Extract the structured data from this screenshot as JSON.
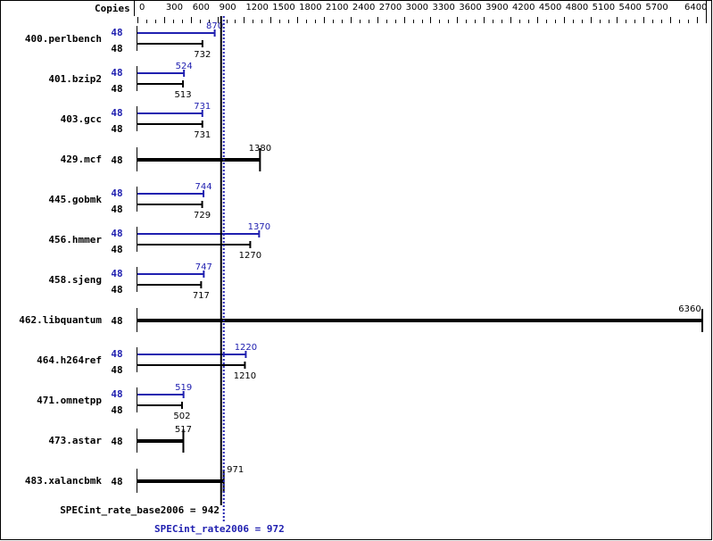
{
  "chart_data": {
    "type": "bar",
    "orientation": "horizontal",
    "copies_label": "Copies",
    "xlim": [
      0,
      6400
    ],
    "tick_labels": [
      "0",
      "300",
      "600",
      "900",
      "1200",
      "1500",
      "1800",
      "2100",
      "2400",
      "2700",
      "3000",
      "3300",
      "3600",
      "3900",
      "4200",
      "4500",
      "4800",
      "5100",
      "5400",
      "5700",
      "6400"
    ],
    "colors": {
      "base": "#000000",
      "peak": "#2020b0"
    },
    "categories": [
      "400.perlbench",
      "401.bzip2",
      "403.gcc",
      "429.mcf",
      "445.gobmk",
      "456.hmmer",
      "458.sjeng",
      "462.libquantum",
      "464.h264ref",
      "471.omnetpp",
      "473.astar",
      "483.xalancbmk"
    ],
    "series": [
      {
        "name": "peak",
        "copies": [
          48,
          48,
          48,
          null,
          48,
          48,
          48,
          null,
          48,
          48,
          null,
          null
        ],
        "values": [
          870,
          524,
          731,
          null,
          744,
          1370,
          747,
          null,
          1220,
          519,
          null,
          null
        ]
      },
      {
        "name": "base",
        "copies": [
          48,
          48,
          48,
          48,
          48,
          48,
          48,
          48,
          48,
          48,
          48,
          48
        ],
        "values": [
          732,
          513,
          731,
          1380,
          729,
          1270,
          717,
          6360,
          1210,
          502,
          517,
          971
        ]
      }
    ],
    "base_summary": {
      "label": "SPECint_rate_base2006 = 942",
      "value": 942
    },
    "peak_summary": {
      "label": "SPECint_rate2006 = 972",
      "value": 972
    }
  }
}
